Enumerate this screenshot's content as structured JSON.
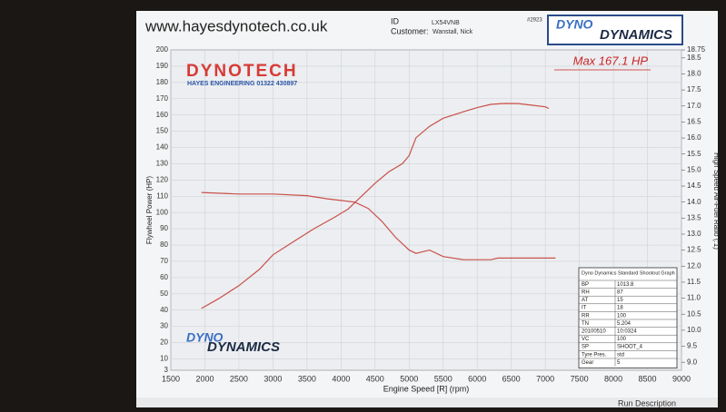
{
  "header": {
    "url": "www.hayesdynotech.co.uk",
    "id_label": "ID",
    "id_value": "LX54VNB",
    "customer_label": "Customer:",
    "customer_value": "Wanstall, Nick",
    "sheet_number": "#2923",
    "logo_top_a": "DYNO",
    "logo_top_b": "DYNAMICS"
  },
  "chart_data": {
    "type": "line",
    "xlabel": "Engine Speed [R] (rpm)",
    "ylabel": "Flywheel Power (HP)",
    "y2label": "High Speed Air-Fuel Ratio (:1)",
    "annotation": "Max 167.1 HP",
    "brand_title": "DYNOTECH",
    "brand_subtitle": "HAYES ENGINEERING 01322 430897",
    "logo_a": "DYNO",
    "logo_b": "DYNAMICS",
    "xlim": [
      1500,
      9000
    ],
    "xticks": [
      1500,
      2000,
      2500,
      3000,
      3500,
      4000,
      4500,
      5000,
      5500,
      6000,
      6500,
      7000,
      7500,
      8000,
      8500,
      9000
    ],
    "ylim": [
      3,
      200
    ],
    "yticks": [
      3,
      10,
      20,
      30,
      40,
      50,
      60,
      70,
      80,
      90,
      100,
      110,
      120,
      130,
      140,
      150,
      160,
      170,
      180,
      190,
      200
    ],
    "y2lim": [
      8.75,
      18.75
    ],
    "y2ticks": [
      {
        "value": 9,
        "label": "9.0"
      },
      9.5,
      {
        "value": 10,
        "label": "10.0"
      },
      10.5,
      {
        "value": 11,
        "label": "11.0"
      },
      11.5,
      {
        "value": 12,
        "label": "12.0"
      },
      12.5,
      {
        "value": 13,
        "label": "13.0"
      },
      13.5,
      {
        "value": 14,
        "label": "14.0"
      },
      14.5,
      {
        "value": 15,
        "label": "15.0"
      },
      15.5,
      {
        "value": 16,
        "label": "16.0"
      },
      16.5,
      {
        "value": 17,
        "label": "17.0"
      },
      17.5,
      {
        "value": 18,
        "label": "18.0"
      },
      18.5,
      18.75
    ],
    "grid": true,
    "series": [
      {
        "color": "#c9504a",
        "x": [
          1950,
          2200,
          2500,
          2800,
          3000,
          3300,
          3600,
          3900,
          4100,
          4300,
          4500,
          4700,
          4900,
          5000,
          5100,
          5300,
          5500,
          5800,
          6000,
          6200,
          6400,
          6600,
          6800,
          7000,
          7050
        ],
        "values": [
          41,
          47,
          55,
          65,
          74,
          82,
          90,
          97,
          102,
          110,
          118,
          125,
          130,
          135,
          146,
          153,
          158,
          162,
          164.5,
          166.5,
          167.1,
          167,
          166,
          165,
          164
        ]
      },
      {
        "color": "#c9504a",
        "axis": "y2",
        "x": [
          1950,
          2500,
          3000,
          3500,
          3800,
          4000,
          4200,
          4400,
          4600,
          4800,
          5000,
          5100,
          5300,
          5500,
          5800,
          6000,
          6200,
          6300,
          6500,
          6800,
          7000,
          7150
        ],
        "values": [
          14.3,
          14.25,
          14.25,
          14.2,
          14.1,
          14.05,
          14.0,
          13.8,
          13.4,
          12.9,
          12.5,
          12.4,
          12.5,
          12.3,
          12.2,
          12.2,
          12.2,
          12.25,
          12.25,
          12.25,
          12.25,
          12.25
        ]
      }
    ]
  },
  "info_table": {
    "title": "Dyno Dynamics Standard Shootout Graph",
    "rows": [
      [
        "BP",
        "1013.8"
      ],
      [
        "RH",
        "87"
      ],
      [
        "AT",
        "15"
      ],
      [
        "IT",
        "18"
      ],
      [
        "RR",
        "100"
      ],
      [
        "TN",
        "5.204"
      ],
      [
        "20100510",
        "10:0324"
      ],
      [
        "VC",
        "100"
      ],
      [
        "SP",
        "SHOOT_4"
      ],
      [
        "Tyre Pres.",
        "std"
      ],
      [
        "Gear",
        "5"
      ]
    ]
  },
  "footer": {
    "run_description": "Run Description"
  }
}
